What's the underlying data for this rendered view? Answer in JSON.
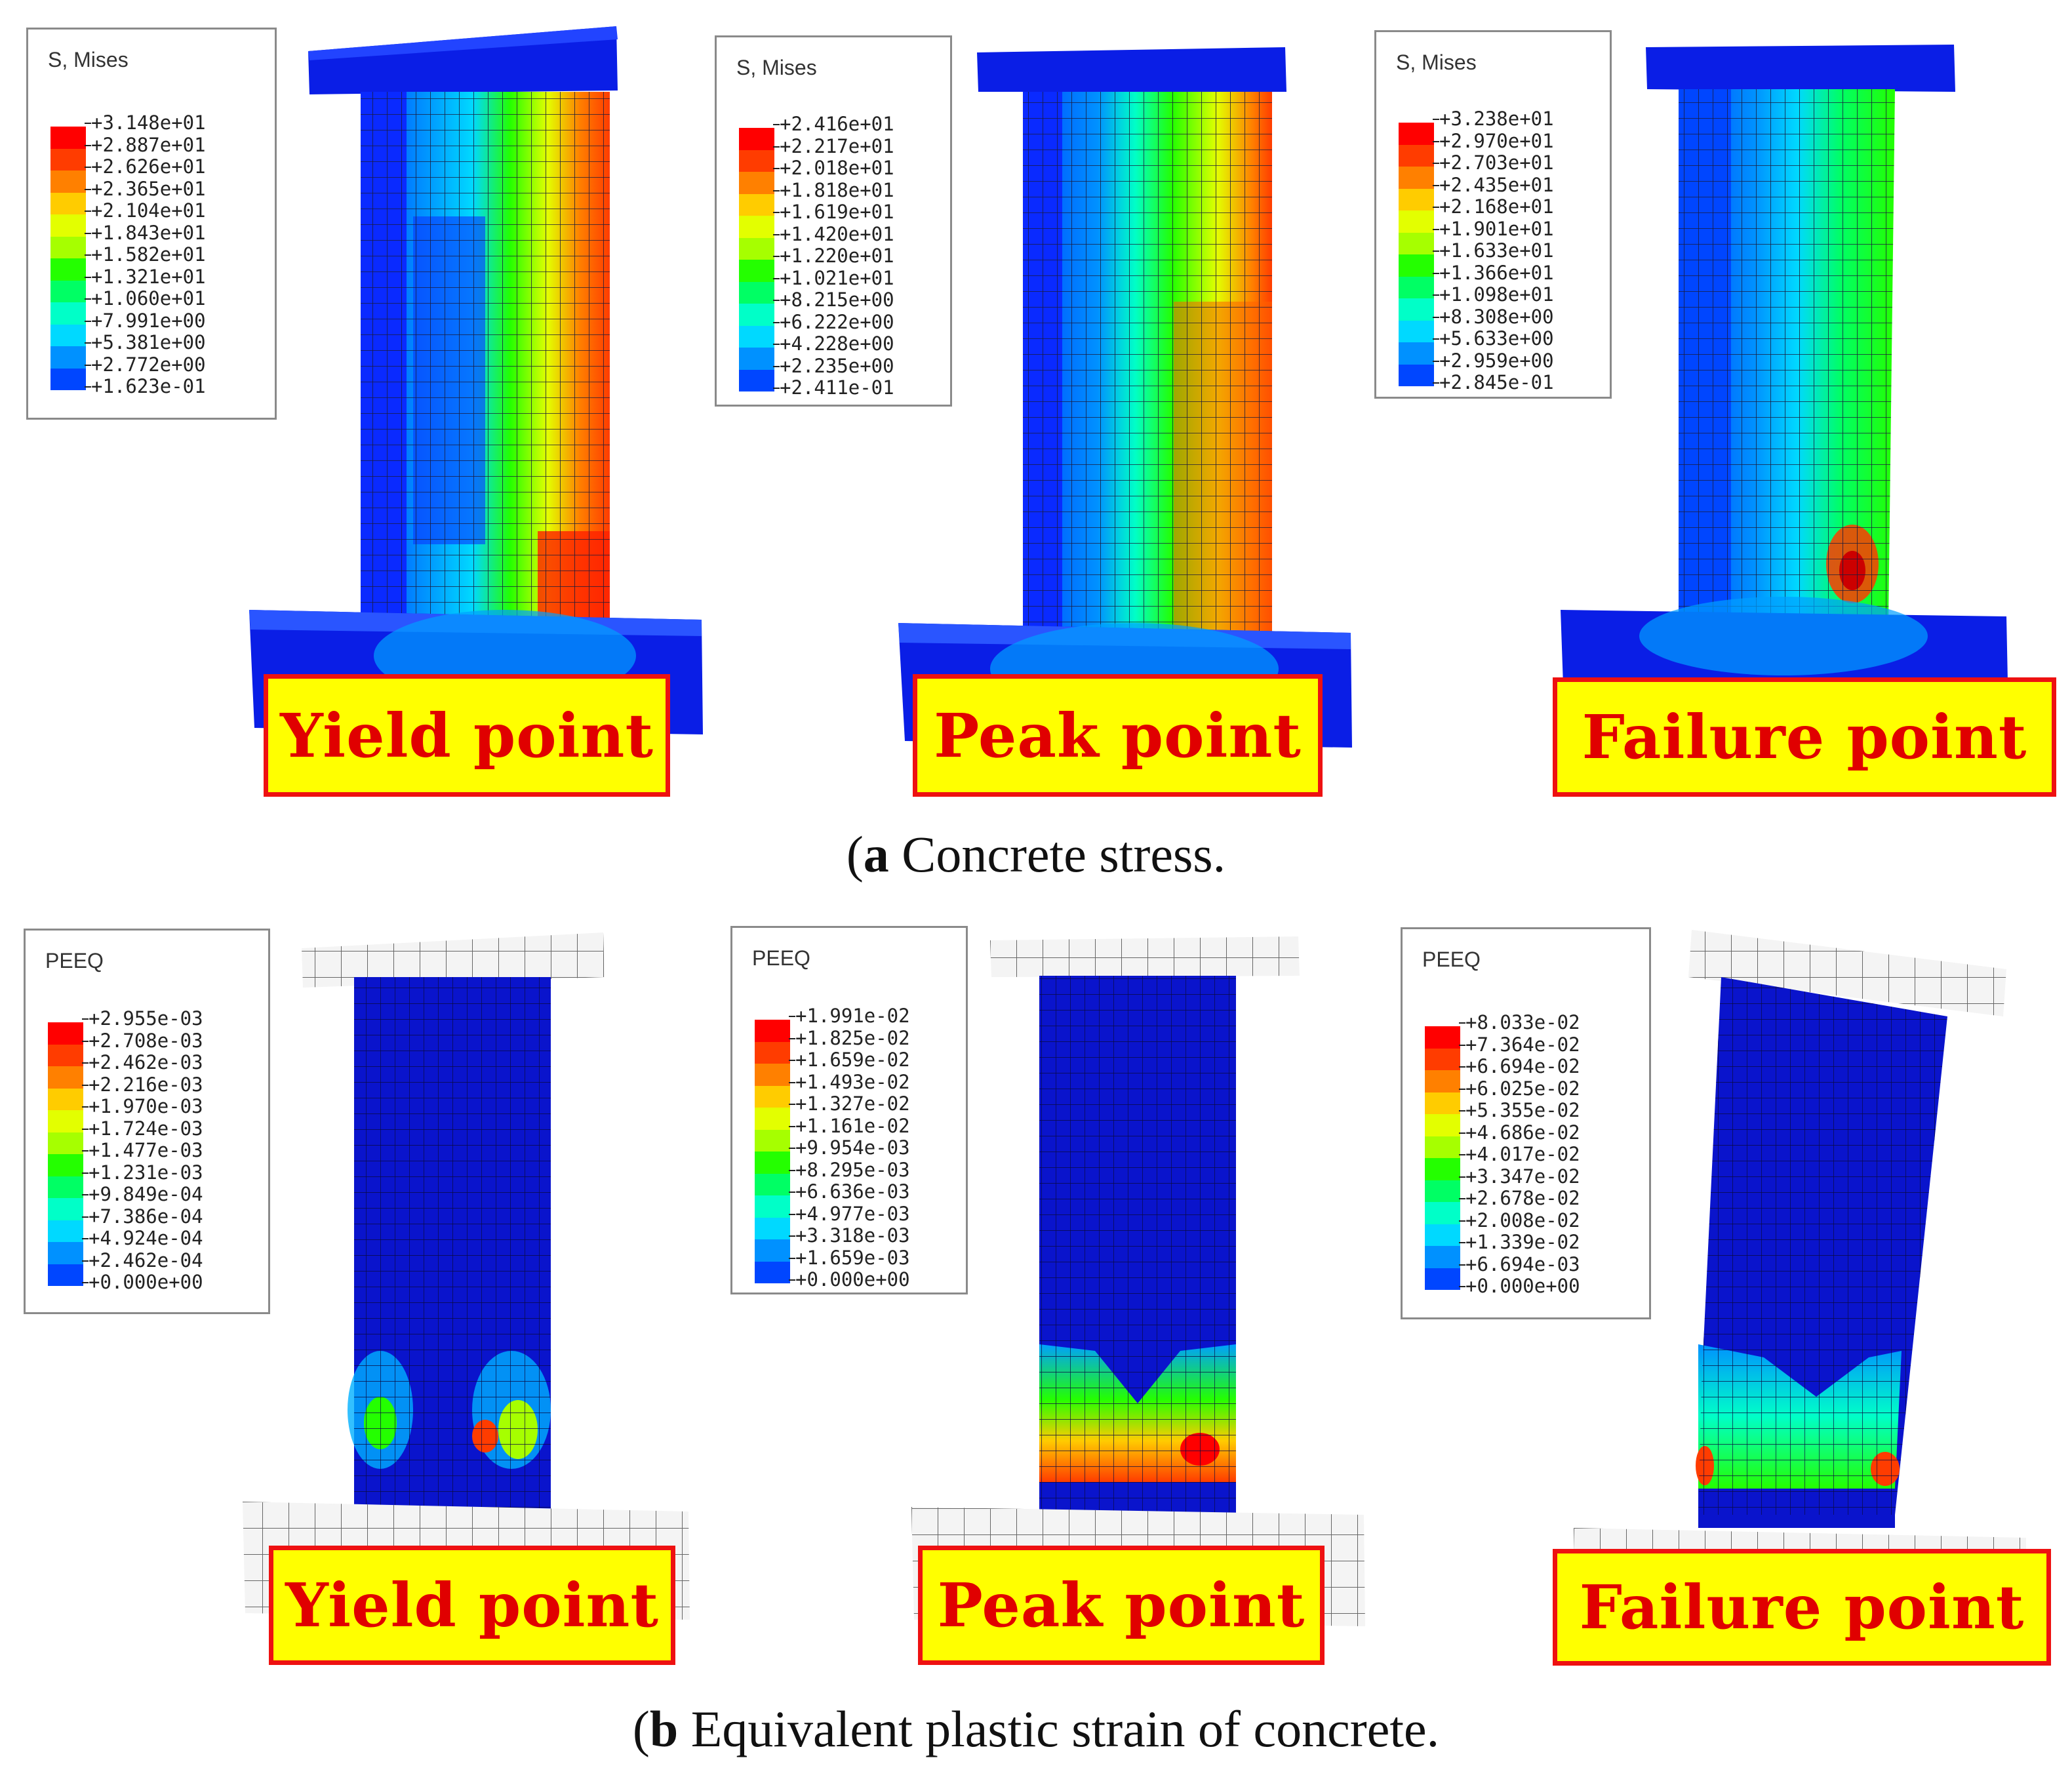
{
  "captions": {
    "a": {
      "letter": "a",
      "text": " Concrete stress."
    },
    "b": {
      "letter": "b",
      "text": " Equivalent plastic strain of concrete."
    }
  },
  "colors": {
    "contour": [
      "#0000ff",
      "#0046ff",
      "#0091ff",
      "#00d9ff",
      "#00ffc8",
      "#00ff64",
      "#24ff00",
      "#a6ff00",
      "#e3ff00",
      "#ffcc00",
      "#ff8000",
      "#ff3c00",
      "#ff0000"
    ],
    "label_fill": "#ffff00",
    "label_border": "#ee1111",
    "label_text": "#e00000",
    "undeformed": "#f2f2f2"
  },
  "stress": {
    "legend_title": "S, Mises",
    "panels": [
      {
        "label": "Yield point",
        "legend": [
          "+3.148e+01",
          "+2.887e+01",
          "+2.626e+01",
          "+2.365e+01",
          "+2.104e+01",
          "+1.843e+01",
          "+1.582e+01",
          "+1.321e+01",
          "+1.060e+01",
          "+7.991e+00",
          "+5.381e+00",
          "+2.772e+00",
          "+1.623e-01"
        ]
      },
      {
        "label": "Peak point",
        "legend": [
          "+2.416e+01",
          "+2.217e+01",
          "+2.018e+01",
          "+1.818e+01",
          "+1.619e+01",
          "+1.420e+01",
          "+1.220e+01",
          "+1.021e+01",
          "+8.215e+00",
          "+6.222e+00",
          "+4.228e+00",
          "+2.235e+00",
          "+2.411e-01"
        ]
      },
      {
        "label": "Failure point",
        "legend": [
          "+3.238e+01",
          "+2.970e+01",
          "+2.703e+01",
          "+2.435e+01",
          "+2.168e+01",
          "+1.901e+01",
          "+1.633e+01",
          "+1.366e+01",
          "+1.098e+01",
          "+8.308e+00",
          "+5.633e+00",
          "+2.959e+00",
          "+2.845e-01"
        ]
      }
    ]
  },
  "strain": {
    "legend_title": "PEEQ",
    "panels": [
      {
        "label": "Yield point",
        "legend": [
          "+2.955e-03",
          "+2.708e-03",
          "+2.462e-03",
          "+2.216e-03",
          "+1.970e-03",
          "+1.724e-03",
          "+1.477e-03",
          "+1.231e-03",
          "+9.849e-04",
          "+7.386e-04",
          "+4.924e-04",
          "+2.462e-04",
          "+0.000e+00"
        ]
      },
      {
        "label": "Peak point",
        "legend": [
          "+1.991e-02",
          "+1.825e-02",
          "+1.659e-02",
          "+1.493e-02",
          "+1.327e-02",
          "+1.161e-02",
          "+9.954e-03",
          "+8.295e-03",
          "+6.636e-03",
          "+4.977e-03",
          "+3.318e-03",
          "+1.659e-03",
          "+0.000e+00"
        ]
      },
      {
        "label": "Failure point",
        "legend": [
          "+8.033e-02",
          "+7.364e-02",
          "+6.694e-02",
          "+6.025e-02",
          "+5.355e-02",
          "+4.686e-02",
          "+4.017e-02",
          "+3.347e-02",
          "+2.678e-02",
          "+2.008e-02",
          "+1.339e-02",
          "+6.694e-03",
          "+0.000e+00"
        ]
      }
    ]
  }
}
